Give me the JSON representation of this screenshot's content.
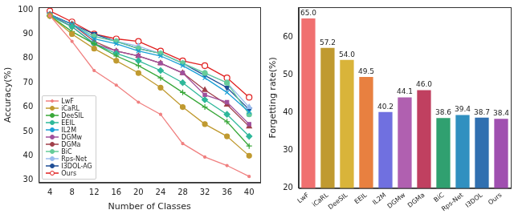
{
  "chart_data": [
    {
      "type": "line",
      "x_label": "Number of Classes",
      "y_label": "Accuracy(%)",
      "x": [
        4,
        8,
        12,
        16,
        20,
        24,
        28,
        32,
        36,
        40
      ],
      "xlim": [
        2,
        42
      ],
      "xticks": [
        4,
        8,
        12,
        16,
        20,
        24,
        28,
        32,
        36,
        40
      ],
      "ylim": [
        29,
        101
      ],
      "yticks": [
        30,
        40,
        50,
        60,
        70,
        80,
        90,
        100
      ],
      "grid": false,
      "legend": "lower left",
      "series": [
        {
          "name": "LwF",
          "color": "#f08080",
          "marker": "point",
          "values": [
            97.5,
            87,
            75,
            69,
            62,
            57,
            45,
            39.5,
            36,
            31.5
          ]
        },
        {
          "name": "iCaRL",
          "color": "#c09a30",
          "marker": "circle",
          "values": [
            97.5,
            90,
            84,
            79,
            74,
            68,
            60,
            53,
            48,
            40
          ]
        },
        {
          "name": "DeeSIL",
          "color": "#3aa83a",
          "marker": "plus",
          "values": [
            97.5,
            91,
            86,
            81,
            77,
            72,
            66,
            60,
            54,
            44
          ]
        },
        {
          "name": "EEIL",
          "color": "#2eb89a",
          "marker": "diamond",
          "values": [
            97.5,
            93,
            86,
            82,
            79,
            75,
            70,
            63,
            57,
            48
          ]
        },
        {
          "name": "IL2M",
          "color": "#1a9fd6",
          "marker": "x",
          "values": [
            98,
            94,
            88,
            86,
            83,
            81,
            77,
            72,
            66,
            58
          ]
        },
        {
          "name": "DGMw",
          "color": "#a0509c",
          "marker": "square",
          "values": [
            98,
            93,
            86,
            83,
            81,
            78,
            74,
            65,
            62,
            53
          ]
        },
        {
          "name": "DGMa",
          "color": "#a0404a",
          "marker": "triangle",
          "values": [
            98,
            94,
            87,
            83,
            81,
            78,
            74,
            67,
            61,
            52
          ]
        },
        {
          "name": "BiC",
          "color": "#66cc99",
          "marker": "circle",
          "values": [
            98,
            94,
            89,
            87,
            84,
            82,
            78,
            74,
            70,
            57
          ]
        },
        {
          "name": "Rps-Net",
          "color": "#99bbee",
          "marker": "triangle",
          "values": [
            98,
            94,
            89,
            87,
            85,
            82,
            78,
            74,
            70,
            60
          ]
        },
        {
          "name": "I3DOL-AG",
          "color": "#1f4e96",
          "marker": "triangle_down",
          "values": [
            98,
            94,
            90,
            87,
            84,
            82,
            78,
            73,
            68,
            59
          ]
        },
        {
          "name": "Ours",
          "color": "#e02020",
          "marker": "circle_open",
          "values": [
            99.5,
            95,
            90,
            88,
            87,
            83,
            79,
            77,
            72,
            64
          ]
        }
      ]
    },
    {
      "type": "bar",
      "y_label": "Forgetting rate(%)",
      "categories": [
        "LwF",
        "iCaRL",
        "DeeSIL",
        "EEIL",
        "IL2M",
        "DGMw",
        "DGMa",
        "BiC",
        "Rps-Net",
        "I3DOL",
        "Ours"
      ],
      "values": [
        65.0,
        57.2,
        54.0,
        49.5,
        40.2,
        44.1,
        46.0,
        38.6,
        39.4,
        38.7,
        38.4
      ],
      "value_labels": [
        "65.0",
        "57.2",
        "54.0",
        "49.5",
        "40.2",
        "44.1",
        "46.0",
        "38.6",
        "39.4",
        "38.7",
        "38.4"
      ],
      "colors": [
        "#f07070",
        "#c09a30",
        "#d9b43a",
        "#e88040",
        "#7070e0",
        "#b060b0",
        "#c04060",
        "#30a070",
        "#3090c0",
        "#3070b0",
        "#a050b0"
      ],
      "ylim": [
        20,
        68
      ],
      "yticks": [
        20,
        30,
        40,
        50,
        60
      ],
      "grid": false,
      "data_labels": true
    }
  ]
}
